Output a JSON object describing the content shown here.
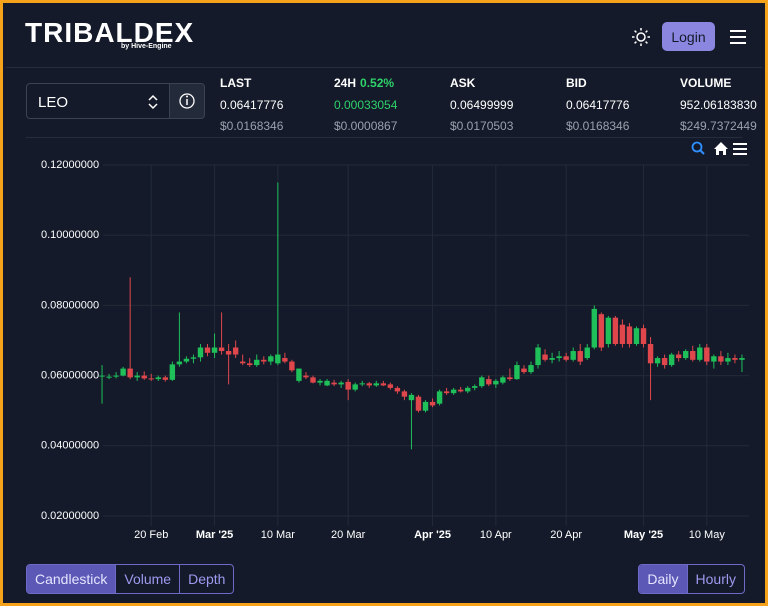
{
  "header": {
    "logo": "TRIBALDEX",
    "logo_sub": "by Hive-Engine",
    "login": "Login"
  },
  "token": {
    "symbol": "LEO"
  },
  "stats": [
    {
      "label": "LAST",
      "value": "0.06417776",
      "usd": "$0.0168346"
    },
    {
      "label": "24H",
      "change": "0.52%",
      "value": "0.00033054",
      "usd": "$0.0000867"
    },
    {
      "label": "ASK",
      "value": "0.06499999",
      "usd": "$0.0170503"
    },
    {
      "label": "BID",
      "value": "0.06417776",
      "usd": "$0.0168346"
    },
    {
      "label": "VOLUME",
      "value": "952.06183830",
      "usd": "$249.7372449"
    }
  ],
  "chart_tabs": [
    "Candlestick",
    "Volume",
    "Depth"
  ],
  "interval_tabs": [
    "Daily",
    "Hourly"
  ],
  "chart_data": {
    "type": "candlestick",
    "up_color": "#1fbf5a",
    "down_color": "#e0474c",
    "grid": true,
    "x": [
      "2025-02-13",
      "2025-02-14",
      "2025-02-15",
      "2025-02-16",
      "2025-02-17",
      "2025-02-18",
      "2025-02-19",
      "2025-02-20",
      "2025-02-21",
      "2025-02-22",
      "2025-02-23",
      "2025-02-24",
      "2025-02-25",
      "2025-02-26",
      "2025-02-27",
      "2025-02-28",
      "2025-03-01",
      "2025-03-02",
      "2025-03-03",
      "2025-03-04",
      "2025-03-05",
      "2025-03-06",
      "2025-03-07",
      "2025-03-08",
      "2025-03-09",
      "2025-03-10",
      "2025-03-11",
      "2025-03-12",
      "2025-03-13",
      "2025-03-14",
      "2025-03-15",
      "2025-03-16",
      "2025-03-17",
      "2025-03-18",
      "2025-03-19",
      "2025-03-20",
      "2025-03-21",
      "2025-03-22",
      "2025-03-23",
      "2025-03-24",
      "2025-03-25",
      "2025-03-26",
      "2025-03-27",
      "2025-03-28",
      "2025-03-29",
      "2025-03-30",
      "2025-03-31",
      "2025-04-01",
      "2025-04-02",
      "2025-04-03",
      "2025-04-04",
      "2025-04-05",
      "2025-04-06",
      "2025-04-07",
      "2025-04-08",
      "2025-04-09",
      "2025-04-10",
      "2025-04-11",
      "2025-04-12",
      "2025-04-13",
      "2025-04-14",
      "2025-04-15",
      "2025-04-16",
      "2025-04-17",
      "2025-04-18",
      "2025-04-19",
      "2025-04-20",
      "2025-04-21",
      "2025-04-22",
      "2025-04-23",
      "2025-04-24",
      "2025-04-25",
      "2025-04-26",
      "2025-04-27",
      "2025-04-28",
      "2025-04-29",
      "2025-04-30",
      "2025-05-01",
      "2025-05-02",
      "2025-05-03",
      "2025-05-04",
      "2025-05-05",
      "2025-05-06",
      "2025-05-07",
      "2025-05-08",
      "2025-05-09",
      "2025-05-10",
      "2025-05-11",
      "2025-05-12",
      "2025-05-13",
      "2025-05-14",
      "2025-05-15"
    ],
    "open": [
      0.0598,
      0.0595,
      0.0597,
      0.06,
      0.062,
      0.0595,
      0.06,
      0.0592,
      0.059,
      0.0595,
      0.0588,
      0.0632,
      0.064,
      0.0648,
      0.0652,
      0.068,
      0.0665,
      0.068,
      0.067,
      0.068,
      0.064,
      0.0635,
      0.063,
      0.0645,
      0.064,
      0.0635,
      0.065,
      0.064,
      0.0585,
      0.06,
      0.0595,
      0.058,
      0.0572,
      0.058,
      0.0575,
      0.0582,
      0.056,
      0.0575,
      0.0578,
      0.0572,
      0.0578,
      0.0575,
      0.0565,
      0.0555,
      0.053,
      0.054,
      0.05,
      0.0525,
      0.052,
      0.0555,
      0.055,
      0.056,
      0.0555,
      0.0565,
      0.057,
      0.059,
      0.0575,
      0.058,
      0.0595,
      0.059,
      0.062,
      0.061,
      0.063,
      0.066,
      0.0645,
      0.065,
      0.0655,
      0.0645,
      0.067,
      0.065,
      0.068,
      0.0775,
      0.069,
      0.0765,
      0.0745,
      0.074,
      0.069,
      0.0735,
      0.069,
      0.0635,
      0.065,
      0.063,
      0.066,
      0.065,
      0.067,
      0.0645,
      0.068,
      0.064,
      0.0655,
      0.064,
      0.065,
      0.0645
    ],
    "high": [
      0.063,
      0.0605,
      0.061,
      0.0625,
      0.088,
      0.061,
      0.0612,
      0.0605,
      0.06,
      0.06,
      0.064,
      0.078,
      0.0655,
      0.066,
      0.069,
      0.069,
      0.072,
      0.078,
      0.069,
      0.07,
      0.066,
      0.065,
      0.066,
      0.0655,
      0.066,
      0.115,
      0.0665,
      0.0645,
      0.062,
      0.061,
      0.06,
      0.059,
      0.059,
      0.0588,
      0.0585,
      0.059,
      0.058,
      0.0585,
      0.0582,
      0.0585,
      0.0585,
      0.058,
      0.057,
      0.056,
      0.055,
      0.0545,
      0.053,
      0.0535,
      0.056,
      0.0565,
      0.0565,
      0.0568,
      0.057,
      0.0575,
      0.06,
      0.06,
      0.059,
      0.06,
      0.062,
      0.064,
      0.063,
      0.064,
      0.069,
      0.0675,
      0.0665,
      0.067,
      0.0665,
      0.068,
      0.069,
      0.069,
      0.08,
      0.078,
      0.077,
      0.077,
      0.076,
      0.075,
      0.074,
      0.0745,
      0.071,
      0.0655,
      0.066,
      0.0665,
      0.067,
      0.0675,
      0.0685,
      0.069,
      0.069,
      0.066,
      0.067,
      0.0665,
      0.066,
      0.066
    ],
    "low": [
      0.052,
      0.059,
      0.0592,
      0.0598,
      0.059,
      0.0585,
      0.0588,
      0.0585,
      0.0585,
      0.0583,
      0.0585,
      0.0625,
      0.0635,
      0.0635,
      0.064,
      0.0655,
      0.065,
      0.066,
      0.0575,
      0.065,
      0.063,
      0.0625,
      0.0625,
      0.0632,
      0.063,
      0.063,
      0.0635,
      0.061,
      0.058,
      0.059,
      0.0578,
      0.0572,
      0.057,
      0.057,
      0.0565,
      0.053,
      0.0555,
      0.057,
      0.0565,
      0.0568,
      0.057,
      0.056,
      0.0548,
      0.053,
      0.039,
      0.0495,
      0.0495,
      0.051,
      0.0515,
      0.0545,
      0.0545,
      0.0552,
      0.055,
      0.0558,
      0.0565,
      0.057,
      0.0565,
      0.0575,
      0.0585,
      0.0588,
      0.0605,
      0.0605,
      0.062,
      0.064,
      0.0635,
      0.064,
      0.064,
      0.064,
      0.063,
      0.0645,
      0.0675,
      0.067,
      0.068,
      0.0685,
      0.068,
      0.068,
      0.0685,
      0.068,
      0.053,
      0.0625,
      0.062,
      0.0625,
      0.064,
      0.0645,
      0.064,
      0.064,
      0.063,
      0.062,
      0.063,
      0.063,
      0.0635,
      0.061
    ],
    "close": [
      0.06,
      0.0597,
      0.06,
      0.062,
      0.0595,
      0.06,
      0.0592,
      0.059,
      0.0595,
      0.0588,
      0.0632,
      0.064,
      0.0648,
      0.0652,
      0.068,
      0.0665,
      0.068,
      0.067,
      0.066,
      0.066,
      0.0635,
      0.063,
      0.0645,
      0.064,
      0.0655,
      0.066,
      0.064,
      0.0615,
      0.062,
      0.0595,
      0.058,
      0.0585,
      0.0585,
      0.0575,
      0.058,
      0.056,
      0.0575,
      0.0578,
      0.0572,
      0.0578,
      0.0572,
      0.0565,
      0.0555,
      0.054,
      0.0545,
      0.05,
      0.0525,
      0.0515,
      0.0555,
      0.055,
      0.056,
      0.0555,
      0.0565,
      0.057,
      0.0595,
      0.0575,
      0.0585,
      0.0595,
      0.059,
      0.063,
      0.061,
      0.063,
      0.068,
      0.0645,
      0.065,
      0.0655,
      0.0645,
      0.067,
      0.064,
      0.068,
      0.079,
      0.068,
      0.0765,
      0.069,
      0.069,
      0.069,
      0.0735,
      0.069,
      0.0635,
      0.065,
      0.063,
      0.066,
      0.065,
      0.067,
      0.0645,
      0.068,
      0.064,
      0.0655,
      0.064,
      0.065,
      0.0645,
      0.065
    ],
    "xlim": [
      "2025-02-12",
      "2025-05-16"
    ],
    "xticks": [
      {
        "value": "2025-02-20",
        "label": "20 Feb"
      },
      {
        "value": "2025-03-01",
        "label": "Mar '25"
      },
      {
        "value": "2025-03-10",
        "label": "10 Mar"
      },
      {
        "value": "2025-03-20",
        "label": "20 Mar"
      },
      {
        "value": "2025-04-01",
        "label": "Apr '25"
      },
      {
        "value": "2025-04-10",
        "label": "10 Apr"
      },
      {
        "value": "2025-04-20",
        "label": "20 Apr"
      },
      {
        "value": "2025-05-01",
        "label": "May '25"
      },
      {
        "value": "2025-05-10",
        "label": "10 May"
      }
    ],
    "ylim": [
      0.02,
      0.12
    ],
    "yticks": [
      {
        "value": 0.02,
        "label": "0.02000000"
      },
      {
        "value": 0.04,
        "label": "0.04000000"
      },
      {
        "value": 0.06,
        "label": "0.06000000"
      },
      {
        "value": 0.08,
        "label": "0.08000000"
      },
      {
        "value": 0.1,
        "label": "0.10000000"
      },
      {
        "value": 0.12,
        "label": "0.12000000"
      }
    ]
  }
}
